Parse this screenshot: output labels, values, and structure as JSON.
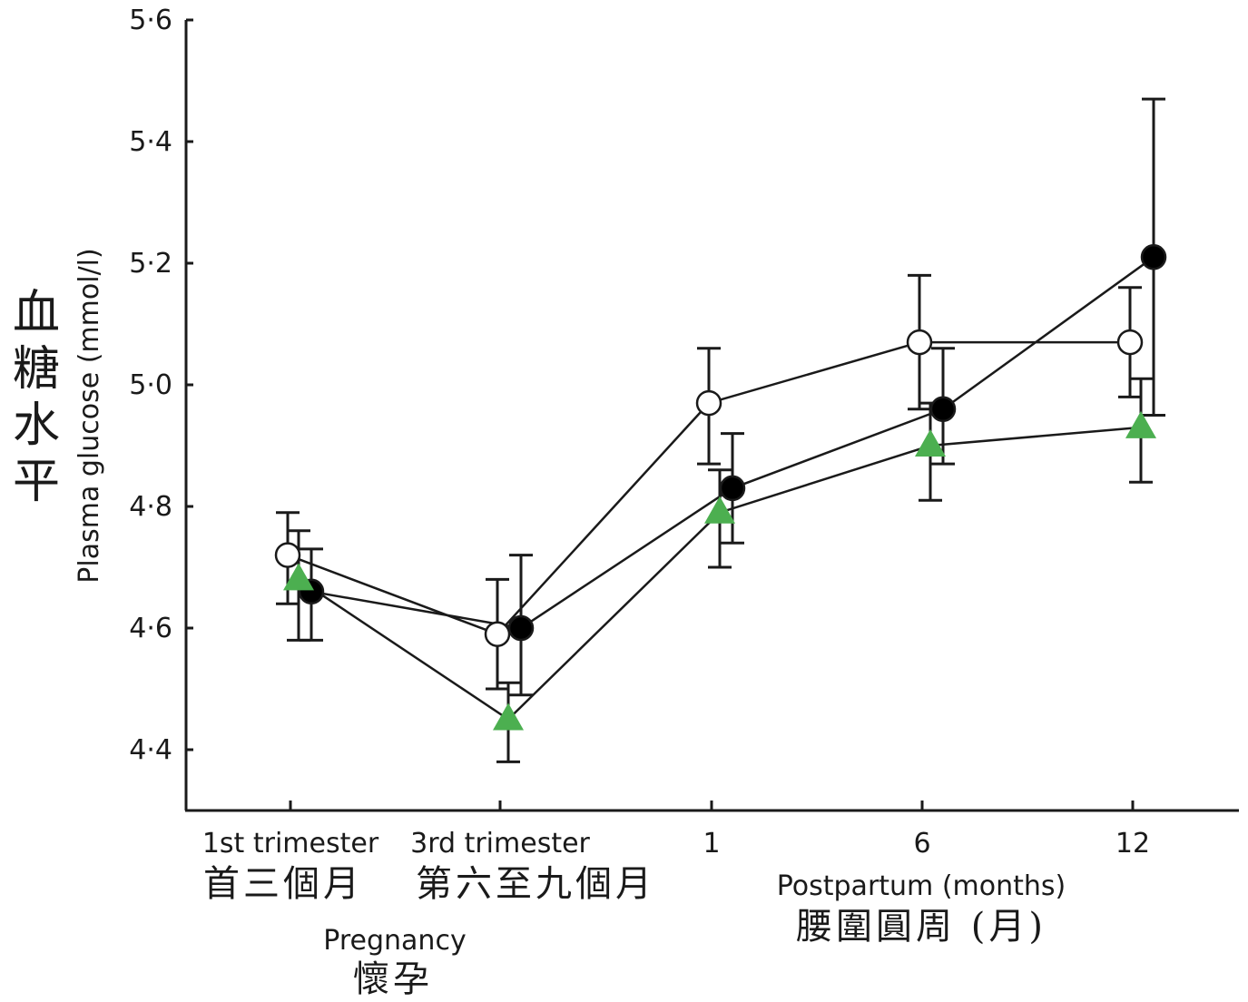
{
  "chart_data": {
    "type": "line",
    "ylabel": "Plasma glucose (mmol/l)",
    "ylabel_zh": "血糖水平",
    "ylim": [
      4.3,
      5.6
    ],
    "yticks": [
      "4·4",
      "4·6",
      "4·8",
      "5·0",
      "5·2",
      "5·4",
      "5·6"
    ],
    "ytick_values": [
      4.4,
      4.6,
      4.8,
      5.0,
      5.2,
      5.4,
      5.6
    ],
    "categories": [
      "1st trimester",
      "3rd trimester",
      "1",
      "6",
      "12"
    ],
    "categories_zh": [
      "首三個月",
      "第六至九個月"
    ],
    "group_labels": {
      "pregnancy": "Pregnancy",
      "pregnancy_zh": "懷孕",
      "postpartum": "Postpartum (months)",
      "postpartum_zh": "腰圍圓周 (月)"
    },
    "grid": false,
    "series": [
      {
        "marker": "open-circle",
        "color": "#ffffff",
        "values": [
          4.72,
          4.59,
          4.97,
          5.07,
          5.07
        ],
        "err_low": [
          4.64,
          4.5,
          4.87,
          4.96,
          4.98
        ],
        "err_high": [
          4.79,
          4.68,
          5.06,
          5.18,
          5.16
        ]
      },
      {
        "marker": "filled-circle",
        "color": "#000000",
        "values": [
          4.66,
          4.6,
          4.83,
          4.96,
          5.21
        ],
        "err_low": [
          4.58,
          4.49,
          4.74,
          4.87,
          4.95
        ],
        "err_high": [
          4.73,
          4.72,
          4.92,
          5.06,
          5.47
        ]
      },
      {
        "marker": "triangle",
        "color": "#4caf50",
        "values": [
          4.68,
          4.45,
          4.79,
          4.9,
          4.93
        ],
        "err_low": [
          4.58,
          4.38,
          4.7,
          4.81,
          4.84
        ],
        "err_high": [
          4.76,
          4.51,
          4.86,
          4.97,
          5.01
        ]
      }
    ]
  }
}
